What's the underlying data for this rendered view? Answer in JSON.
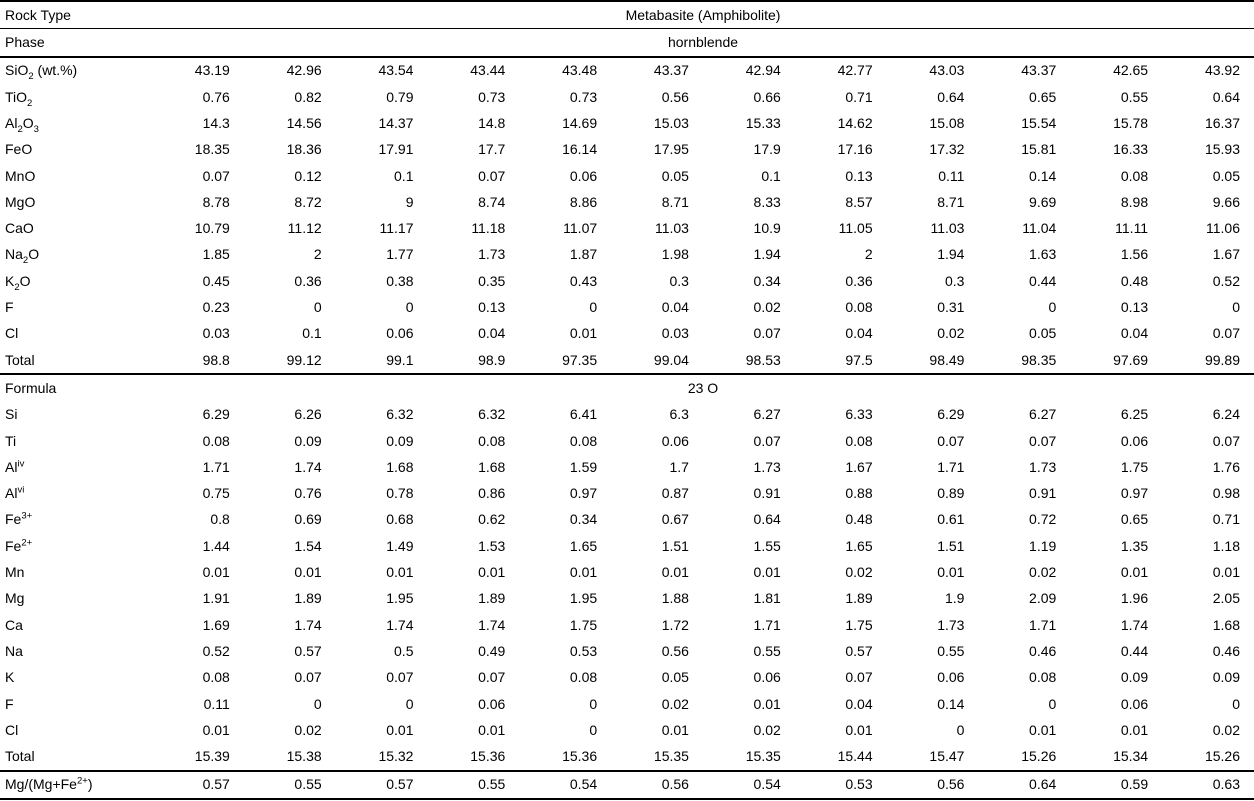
{
  "style": {
    "ink_color": "#000000",
    "background_color": "#ffffff"
  },
  "table": {
    "label_column_header": "",
    "column_count": 12,
    "rows": [
      {
        "kind": "span",
        "label": "Rock Type",
        "value": "Metabasite (Amphibolite)",
        "rule": "thin"
      },
      {
        "kind": "span",
        "label": "Phase",
        "value": "hornblende",
        "rule": "thick"
      },
      {
        "kind": "data",
        "label": "SiO~2~ (wt.%)",
        "values": [
          "43.19",
          "42.96",
          "43.54",
          "43.44",
          "43.48",
          "43.37",
          "42.94",
          "42.77",
          "43.03",
          "43.37",
          "42.65",
          "43.92"
        ]
      },
      {
        "kind": "data",
        "label": "TiO~2~",
        "values": [
          "0.76",
          "0.82",
          "0.79",
          "0.73",
          "0.73",
          "0.56",
          "0.66",
          "0.71",
          "0.64",
          "0.65",
          "0.55",
          "0.64"
        ]
      },
      {
        "kind": "data",
        "label": "Al~2~O~3~",
        "values": [
          "14.3",
          "14.56",
          "14.37",
          "14.8",
          "14.69",
          "15.03",
          "15.33",
          "14.62",
          "15.08",
          "15.54",
          "15.78",
          "16.37"
        ]
      },
      {
        "kind": "data",
        "label": "FeO",
        "values": [
          "18.35",
          "18.36",
          "17.91",
          "17.7",
          "16.14",
          "17.95",
          "17.9",
          "17.16",
          "17.32",
          "15.81",
          "16.33",
          "15.93"
        ]
      },
      {
        "kind": "data",
        "label": "MnO",
        "values": [
          "0.07",
          "0.12",
          "0.1",
          "0.07",
          "0.06",
          "0.05",
          "0.1",
          "0.13",
          "0.11",
          "0.14",
          "0.08",
          "0.05"
        ]
      },
      {
        "kind": "data",
        "label": "MgO",
        "values": [
          "8.78",
          "8.72",
          "9",
          "8.74",
          "8.86",
          "8.71",
          "8.33",
          "8.57",
          "8.71",
          "9.69",
          "8.98",
          "9.66"
        ]
      },
      {
        "kind": "data",
        "label": "CaO",
        "values": [
          "10.79",
          "11.12",
          "11.17",
          "11.18",
          "11.07",
          "11.03",
          "10.9",
          "11.05",
          "11.03",
          "11.04",
          "11.11",
          "11.06"
        ]
      },
      {
        "kind": "data",
        "label": "Na~2~O",
        "values": [
          "1.85",
          "2",
          "1.77",
          "1.73",
          "1.87",
          "1.98",
          "1.94",
          "2",
          "1.94",
          "1.63",
          "1.56",
          "1.67"
        ]
      },
      {
        "kind": "data",
        "label": "K~2~O",
        "values": [
          "0.45",
          "0.36",
          "0.38",
          "0.35",
          "0.43",
          "0.3",
          "0.34",
          "0.36",
          "0.3",
          "0.44",
          "0.48",
          "0.52"
        ]
      },
      {
        "kind": "data",
        "label": "F",
        "values": [
          "0.23",
          "0",
          "0",
          "0.13",
          "0",
          "0.04",
          "0.02",
          "0.08",
          "0.31",
          "0",
          "0.13",
          "0"
        ]
      },
      {
        "kind": "data",
        "label": "Cl",
        "values": [
          "0.03",
          "0.1",
          "0.06",
          "0.04",
          "0.01",
          "0.03",
          "0.07",
          "0.04",
          "0.02",
          "0.05",
          "0.04",
          "0.07"
        ]
      },
      {
        "kind": "data",
        "label": "Total",
        "values": [
          "98.8",
          "99.12",
          "99.1",
          "98.9",
          "97.35",
          "99.04",
          "98.53",
          "97.5",
          "98.49",
          "98.35",
          "97.69",
          "99.89"
        ],
        "rule": "thick"
      },
      {
        "kind": "span",
        "label": "Formula",
        "value": "23 O"
      },
      {
        "kind": "data",
        "label": "Si",
        "values": [
          "6.29",
          "6.26",
          "6.32",
          "6.32",
          "6.41",
          "6.3",
          "6.27",
          "6.33",
          "6.29",
          "6.27",
          "6.25",
          "6.24"
        ]
      },
      {
        "kind": "data",
        "label": "Ti",
        "values": [
          "0.08",
          "0.09",
          "0.09",
          "0.08",
          "0.08",
          "0.06",
          "0.07",
          "0.08",
          "0.07",
          "0.07",
          "0.06",
          "0.07"
        ]
      },
      {
        "kind": "data",
        "label": "Al^iv^",
        "values": [
          "1.71",
          "1.74",
          "1.68",
          "1.68",
          "1.59",
          "1.7",
          "1.73",
          "1.67",
          "1.71",
          "1.73",
          "1.75",
          "1.76"
        ]
      },
      {
        "kind": "data",
        "label": "Al^vi^",
        "values": [
          "0.75",
          "0.76",
          "0.78",
          "0.86",
          "0.97",
          "0.87",
          "0.91",
          "0.88",
          "0.89",
          "0.91",
          "0.97",
          "0.98"
        ]
      },
      {
        "kind": "data",
        "label": "Fe^3+^",
        "values": [
          "0.8",
          "0.69",
          "0.68",
          "0.62",
          "0.34",
          "0.67",
          "0.64",
          "0.48",
          "0.61",
          "0.72",
          "0.65",
          "0.71"
        ]
      },
      {
        "kind": "data",
        "label": "Fe^2+^",
        "values": [
          "1.44",
          "1.54",
          "1.49",
          "1.53",
          "1.65",
          "1.51",
          "1.55",
          "1.65",
          "1.51",
          "1.19",
          "1.35",
          "1.18"
        ]
      },
      {
        "kind": "data",
        "label": "Mn",
        "values": [
          "0.01",
          "0.01",
          "0.01",
          "0.01",
          "0.01",
          "0.01",
          "0.01",
          "0.02",
          "0.01",
          "0.02",
          "0.01",
          "0.01"
        ]
      },
      {
        "kind": "data",
        "label": "Mg",
        "values": [
          "1.91",
          "1.89",
          "1.95",
          "1.89",
          "1.95",
          "1.88",
          "1.81",
          "1.89",
          "1.9",
          "2.09",
          "1.96",
          "2.05"
        ]
      },
      {
        "kind": "data",
        "label": "Ca",
        "values": [
          "1.69",
          "1.74",
          "1.74",
          "1.74",
          "1.75",
          "1.72",
          "1.71",
          "1.75",
          "1.73",
          "1.71",
          "1.74",
          "1.68"
        ]
      },
      {
        "kind": "data",
        "label": "Na",
        "values": [
          "0.52",
          "0.57",
          "0.5",
          "0.49",
          "0.53",
          "0.56",
          "0.55",
          "0.57",
          "0.55",
          "0.46",
          "0.44",
          "0.46"
        ]
      },
      {
        "kind": "data",
        "label": "K",
        "values": [
          "0.08",
          "0.07",
          "0.07",
          "0.07",
          "0.08",
          "0.05",
          "0.06",
          "0.07",
          "0.06",
          "0.08",
          "0.09",
          "0.09"
        ]
      },
      {
        "kind": "data",
        "label": "F",
        "values": [
          "0.11",
          "0",
          "0",
          "0.06",
          "0",
          "0.02",
          "0.01",
          "0.04",
          "0.14",
          "0",
          "0.06",
          "0"
        ]
      },
      {
        "kind": "data",
        "label": "Cl",
        "values": [
          "0.01",
          "0.02",
          "0.01",
          "0.01",
          "0",
          "0.01",
          "0.02",
          "0.01",
          "0",
          "0.01",
          "0.01",
          "0.02"
        ]
      },
      {
        "kind": "data",
        "label": "Total",
        "values": [
          "15.39",
          "15.38",
          "15.32",
          "15.36",
          "15.36",
          "15.35",
          "15.35",
          "15.44",
          "15.47",
          "15.26",
          "15.34",
          "15.26"
        ],
        "rule": "thick"
      },
      {
        "kind": "data",
        "label": "Mg/(Mg+Fe^2+^)",
        "values": [
          "0.57",
          "0.55",
          "0.57",
          "0.55",
          "0.54",
          "0.56",
          "0.54",
          "0.53",
          "0.56",
          "0.64",
          "0.59",
          "0.63"
        ]
      }
    ]
  }
}
